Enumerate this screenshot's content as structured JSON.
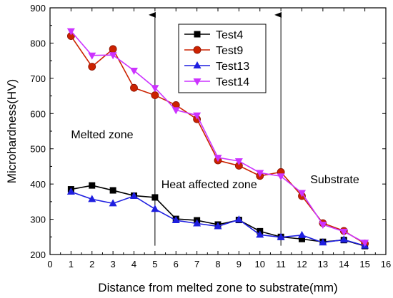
{
  "chart_data": {
    "type": "line",
    "title": "",
    "xlabel": "Distance from melted zone to substrate(mm)",
    "ylabel": "Microhardness(HV)",
    "xlim": [
      0,
      16
    ],
    "ylim": [
      200,
      900
    ],
    "x_ticks": [
      0,
      1,
      2,
      3,
      4,
      5,
      6,
      7,
      8,
      9,
      10,
      11,
      12,
      13,
      14,
      15,
      16
    ],
    "y_ticks": [
      200,
      300,
      400,
      500,
      600,
      700,
      800,
      900
    ],
    "grid": false,
    "legend_position": "top-right",
    "x": [
      1,
      2,
      3,
      4,
      5,
      6,
      7,
      8,
      9,
      10,
      11,
      12,
      13,
      14,
      15
    ],
    "series": [
      {
        "name": "Test4",
        "color": "#000000",
        "marker": "square",
        "values": [
          385,
          396,
          382,
          367,
          362,
          301,
          297,
          285,
          298,
          266,
          250,
          244,
          236,
          241,
          224
        ]
      },
      {
        "name": "Test9",
        "color": "#cc2200",
        "marker": "circle",
        "values": [
          820,
          733,
          783,
          673,
          652,
          624,
          584,
          467,
          452,
          423,
          434,
          366,
          289,
          267,
          231
        ]
      },
      {
        "name": "Test13",
        "color": "#1f1fe0",
        "marker": "triangle-up",
        "values": [
          378,
          357,
          345,
          366,
          329,
          297,
          288,
          280,
          299,
          256,
          249,
          255,
          234,
          242,
          225
        ]
      },
      {
        "name": "Test14",
        "color": "#cc33ff",
        "marker": "triangle-down",
        "values": [
          834,
          765,
          766,
          722,
          673,
          610,
          595,
          475,
          465,
          432,
          422,
          375,
          285,
          265,
          234
        ]
      }
    ],
    "annotations": [
      {
        "text": "Melted zone",
        "x": 1.0,
        "y": 530
      },
      {
        "text": "Heat affected zone",
        "x": 5.3,
        "y": 388
      },
      {
        "text": "Substrate",
        "x": 12.4,
        "y": 402
      }
    ],
    "arrows": [
      {
        "x": 5,
        "y_from": 225,
        "y_to": 880
      },
      {
        "x": 11,
        "y_from": 225,
        "y_to": 880
      }
    ]
  }
}
